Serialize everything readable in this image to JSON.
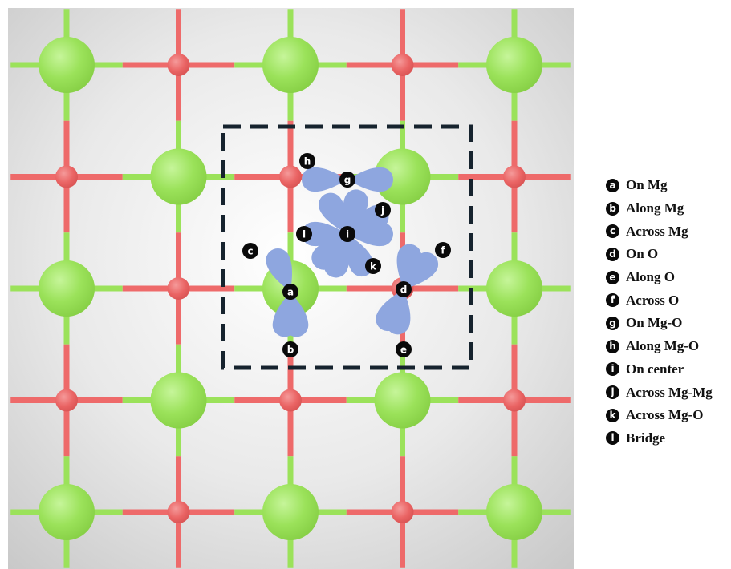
{
  "colors": {
    "mg_atom": "#9be25a",
    "o_atom": "#ee6a6a",
    "bond_mg": "#9be25a",
    "bond_o": "#ee6a6a",
    "orientation_lobe": "#8ea6df",
    "unit_cell_box": "#16232e",
    "site_marker": "#0a0a0a"
  },
  "icons": {
    "mg_atom": "mg-atom-icon",
    "o_atom": "o-atom-icon",
    "orientation_lobe": "petal-icon"
  },
  "sites": [
    {
      "letter": "a",
      "label": "On Mg"
    },
    {
      "letter": "b",
      "label": "Along Mg"
    },
    {
      "letter": "c",
      "label": "Across Mg"
    },
    {
      "letter": "d",
      "label": "On O"
    },
    {
      "letter": "e",
      "label": "Along O"
    },
    {
      "letter": "f",
      "label": "Across O"
    },
    {
      "letter": "g",
      "label": "On Mg-O"
    },
    {
      "letter": "h",
      "label": "Along Mg-O"
    },
    {
      "letter": "i",
      "label": "On center"
    },
    {
      "letter": "j",
      "label": "Across Mg-Mg"
    },
    {
      "letter": "k",
      "label": "Across Mg-O"
    },
    {
      "letter": "l",
      "label": "Bridge"
    }
  ]
}
